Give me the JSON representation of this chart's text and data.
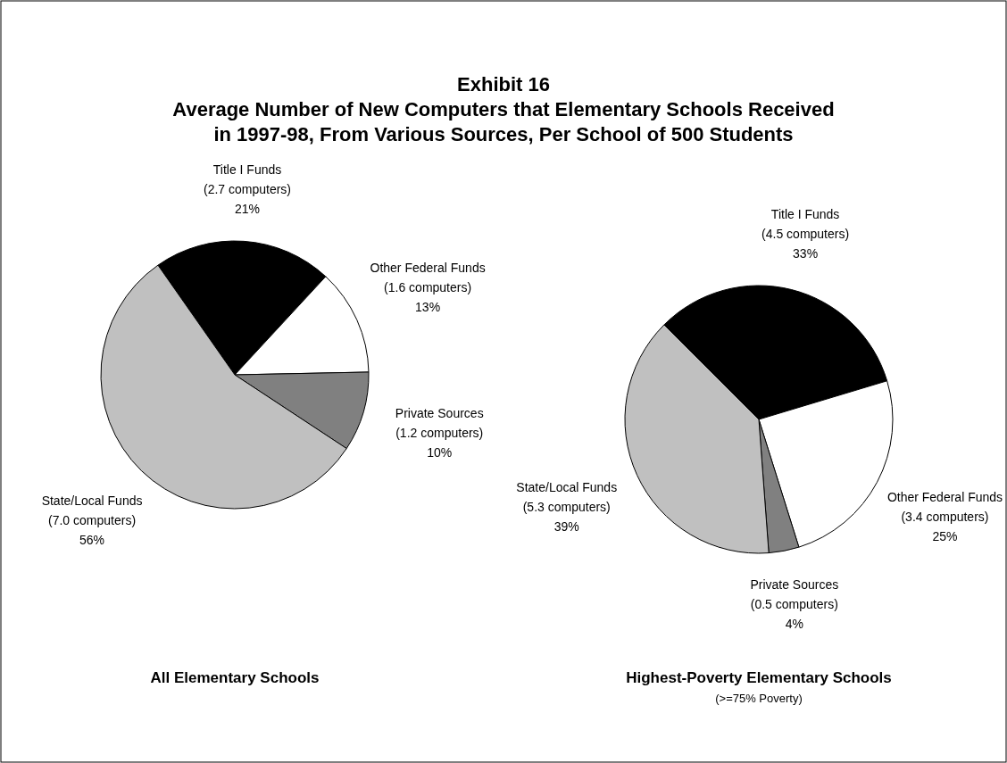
{
  "chart_data": [
    {
      "type": "pie",
      "title": "Exhibit 16\nAverage Number of New Computers that Elementary Schools Received\nin 1997-98, From Various Sources, Per School of 500 Students",
      "xlabel": "All Elementary Schools",
      "categories": [
        "Title I Funds",
        "Other Federal Funds",
        "Private Sources",
        "State/Local Funds"
      ],
      "values": [
        2.7,
        1.6,
        1.2,
        7.0
      ],
      "value_labels": [
        "(2.7 computers)\n21%",
        "(1.6 computers)\n13%",
        "(1.2 computers)\n10%",
        "(7.0 computers)\n56%"
      ],
      "colors": [
        "#000000",
        "#ffffff",
        "#808080",
        "#c0c0c0"
      ]
    },
    {
      "type": "pie",
      "xlabel": "Highest-Poverty Elementary Schools",
      "annotations": [
        "(>=75% Poverty)"
      ],
      "categories": [
        "Title I Funds",
        "Other Federal Funds",
        "Private Sources",
        "State/Local Funds"
      ],
      "values": [
        4.5,
        3.4,
        0.5,
        5.3
      ],
      "value_labels": [
        "(4.5 computers)\n33%",
        "(3.4 computers)\n25%",
        "(0.5 computers)\n4%",
        "(5.3 computers)\n39%"
      ],
      "colors": [
        "#000000",
        "#ffffff",
        "#808080",
        "#c0c0c0"
      ]
    }
  ]
}
